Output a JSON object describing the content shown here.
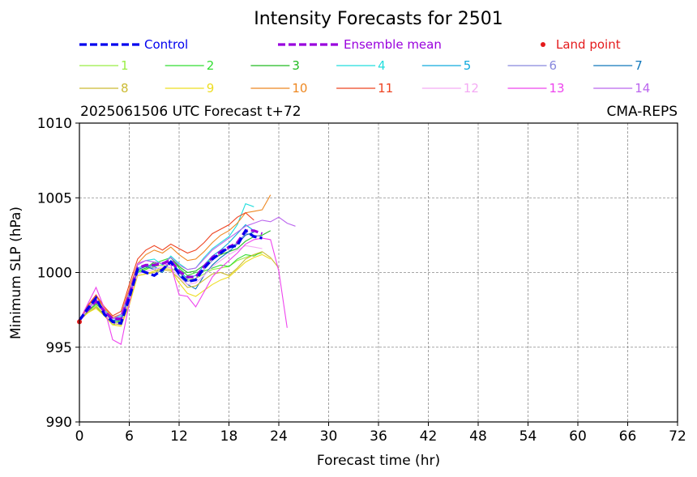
{
  "chart_data": {
    "type": "line",
    "title": "Intensity Forecasts for 2501",
    "subtitle_left": "2025061506 UTC Forecast t+72",
    "subtitle_right": "CMA-REPS",
    "xlabel": "Forecast time (hr)",
    "ylabel": "Minimum SLP (hPa)",
    "xlim": [
      0,
      72
    ],
    "ylim": [
      990,
      1010
    ],
    "xticks": [
      0,
      6,
      12,
      18,
      24,
      30,
      36,
      42,
      48,
      54,
      60,
      66,
      72
    ],
    "yticks": [
      990,
      995,
      1000,
      1005,
      1010
    ],
    "grid": true,
    "legend_position": "top",
    "land_point": {
      "label": "Land point",
      "color": "#e41a1c",
      "x": 0,
      "y": 996.7
    },
    "control": {
      "name": "Control",
      "color": "#0000ee",
      "x": [
        0,
        1,
        2,
        3,
        4,
        5,
        6,
        7,
        8,
        9,
        10,
        11,
        12,
        13,
        14,
        15,
        16,
        17,
        18,
        19,
        20,
        21,
        22
      ],
      "y": [
        996.8,
        997.6,
        998.3,
        997.2,
        996.7,
        996.6,
        998.3,
        1000.2,
        1000.0,
        999.8,
        1000.2,
        1000.7,
        999.9,
        999.4,
        999.5,
        1000.3,
        1000.9,
        1001.3,
        1001.7,
        1001.8,
        1002.8,
        1002.4,
        1002.3
      ]
    },
    "ensemble_mean": {
      "name": "Ensemble mean",
      "color": "#9900dd",
      "x": [
        0,
        1,
        2,
        3,
        4,
        5,
        6,
        7,
        8,
        9,
        10,
        11,
        12,
        13,
        14,
        15,
        16,
        17,
        18,
        19,
        20,
        21,
        22
      ],
      "y": [
        996.8,
        997.5,
        998.1,
        997.4,
        996.9,
        996.9,
        998.5,
        1000.3,
        1000.5,
        1000.5,
        1000.6,
        1000.8,
        1000.1,
        999.7,
        999.7,
        1000.4,
        1001.0,
        1001.4,
        1001.7,
        1002.0,
        1002.8,
        1002.8,
        1002.6
      ]
    },
    "series": [
      {
        "name": "1",
        "color": "#99ee44",
        "x": [
          0,
          1,
          2,
          3,
          4,
          5,
          6,
          7,
          8,
          9,
          10,
          11,
          12,
          13,
          14,
          15,
          16,
          17,
          18,
          19,
          20,
          21,
          22
        ],
        "y": [
          996.8,
          997.4,
          997.8,
          997.2,
          996.6,
          996.8,
          998.4,
          1000.0,
          1000.2,
          1000.4,
          1000.5,
          1000.3,
          1000.0,
          999.5,
          999.6,
          999.9,
          1000.2,
          1000.3,
          1000.4,
          1000.8,
          1001.0,
          1001.2,
          1001.3
        ]
      },
      {
        "name": "2",
        "color": "#33dd33",
        "x": [
          0,
          1,
          2,
          3,
          4,
          5,
          6,
          7,
          8,
          9,
          10,
          11,
          12,
          13,
          14,
          15,
          16,
          17,
          18,
          19,
          20,
          21,
          22
        ],
        "y": [
          996.8,
          997.3,
          997.7,
          997.1,
          996.5,
          996.7,
          998.3,
          1000.0,
          1000.2,
          1000.6,
          1000.8,
          1001.0,
          1000.3,
          999.8,
          1000.0,
          1000.1,
          1000.3,
          1000.5,
          1000.4,
          1000.9,
          1001.2,
          1001.1,
          1001.4
        ]
      },
      {
        "name": "3",
        "color": "#22bb22",
        "x": [
          0,
          1,
          2,
          3,
          4,
          5,
          6,
          7,
          8,
          9,
          10,
          11,
          12,
          13,
          14,
          15,
          16,
          17,
          18,
          19,
          20,
          21,
          22,
          23
        ],
        "y": [
          996.8,
          997.4,
          997.9,
          997.4,
          996.7,
          996.7,
          998.4,
          1000.1,
          1000.3,
          1000.7,
          1000.6,
          1001.0,
          1000.4,
          1000.0,
          1000.1,
          1000.5,
          1000.9,
          1001.2,
          1001.4,
          1001.6,
          1002.1,
          1002.4,
          1002.5,
          1002.8
        ]
      },
      {
        "name": "4",
        "color": "#22dddd",
        "x": [
          0,
          1,
          2,
          3,
          4,
          5,
          6,
          7,
          8,
          9,
          10,
          11,
          12,
          13,
          14,
          15,
          16,
          17,
          18,
          19,
          20,
          21
        ],
        "y": [
          996.8,
          997.6,
          998.2,
          997.5,
          996.9,
          997.1,
          998.6,
          1000.6,
          1000.8,
          1000.9,
          1000.5,
          1001.1,
          1000.6,
          1000.2,
          1000.3,
          1001.0,
          1001.6,
          1002.0,
          1002.4,
          1003.2,
          1004.6,
          1004.4
        ]
      },
      {
        "name": "5",
        "color": "#11aadd",
        "x": [
          0,
          1,
          2,
          3,
          4,
          5,
          6,
          7,
          8,
          9,
          10,
          11,
          12,
          13,
          14,
          15,
          16,
          17,
          18,
          19,
          20,
          21
        ],
        "y": [
          996.8,
          997.6,
          998.2,
          997.3,
          996.8,
          996.9,
          998.4,
          1000.3,
          1000.5,
          1000.4,
          1000.1,
          1000.8,
          1000.1,
          999.6,
          999.8,
          1000.5,
          1001.1,
          1001.5,
          1002.0,
          1002.6,
          1003.2,
          1002.8
        ]
      },
      {
        "name": "6",
        "color": "#8888dd",
        "x": [
          0,
          1,
          2,
          3,
          4,
          5,
          6,
          7,
          8,
          9,
          10,
          11,
          12,
          13,
          14,
          15,
          16,
          17,
          18,
          19,
          20,
          21,
          22
        ],
        "y": [
          996.8,
          997.5,
          998.0,
          997.4,
          996.9,
          997.0,
          998.5,
          1000.2,
          1000.4,
          1000.3,
          1000.2,
          1000.8,
          1000.0,
          999.4,
          999.6,
          1000.2,
          1000.8,
          1001.3,
          1001.6,
          1002.0,
          1002.6,
          1002.5,
          1002.4
        ]
      },
      {
        "name": "7",
        "color": "#1177bb",
        "x": [
          0,
          1,
          2,
          3,
          4,
          5,
          6,
          7,
          8,
          9,
          10,
          11,
          12,
          13,
          14,
          15,
          16,
          17,
          18,
          19,
          20,
          21
        ],
        "y": [
          996.8,
          997.6,
          998.1,
          997.3,
          996.8,
          996.8,
          998.3,
          1000.2,
          1000.4,
          1000.2,
          1000.0,
          1000.8,
          999.8,
          999.2,
          998.9,
          999.8,
          1000.5,
          1001.0,
          1001.4,
          1001.9,
          1002.5,
          1002.7
        ]
      },
      {
        "name": "8",
        "color": "#ccbb33",
        "x": [
          0,
          1,
          2,
          3,
          4,
          5,
          6,
          7,
          8,
          9,
          10,
          11,
          12,
          13,
          14,
          15,
          16,
          17,
          18,
          19,
          20,
          21,
          22,
          23,
          24
        ],
        "y": [
          996.8,
          997.3,
          997.7,
          997.2,
          996.6,
          996.5,
          998.0,
          999.8,
          999.9,
          1000.0,
          1000.2,
          1000.1,
          999.6,
          999.0,
          999.1,
          999.5,
          999.9,
          1000.0,
          999.8,
          1000.3,
          1000.9,
          1001.2,
          1001.4,
          1001.0,
          1000.3
        ]
      },
      {
        "name": "9",
        "color": "#eedd22",
        "x": [
          0,
          1,
          2,
          3,
          4,
          5,
          6,
          7,
          8,
          9,
          10,
          11,
          12,
          13,
          14,
          15,
          16,
          17,
          18,
          19,
          20,
          21,
          22,
          23
        ],
        "y": [
          996.8,
          997.3,
          997.6,
          997.1,
          996.5,
          996.4,
          997.8,
          999.8,
          999.9,
          1000.1,
          1000.3,
          1000.2,
          999.3,
          998.6,
          998.4,
          998.8,
          999.2,
          999.5,
          999.7,
          1000.2,
          1000.7,
          1001.0,
          1001.2,
          1000.9
        ]
      },
      {
        "name": "10",
        "color": "#ee8822",
        "x": [
          0,
          1,
          2,
          3,
          4,
          5,
          6,
          7,
          8,
          9,
          10,
          11,
          12,
          13,
          14,
          15,
          16,
          17,
          18,
          19,
          20,
          21,
          22,
          23
        ],
        "y": [
          996.8,
          997.7,
          998.4,
          997.6,
          997.0,
          997.2,
          998.9,
          1000.6,
          1001.2,
          1001.5,
          1001.3,
          1001.7,
          1001.2,
          1000.8,
          1000.9,
          1001.4,
          1002.0,
          1002.5,
          1002.8,
          1003.3,
          1004.0,
          1004.1,
          1004.2,
          1005.2
        ]
      },
      {
        "name": "11",
        "color": "#ee4422",
        "x": [
          0,
          1,
          2,
          3,
          4,
          5,
          6,
          7,
          8,
          9,
          10,
          11,
          12,
          13,
          14,
          15,
          16,
          17,
          18,
          19,
          20,
          21
        ],
        "y": [
          996.8,
          997.8,
          998.5,
          997.7,
          997.1,
          997.4,
          999.2,
          1000.9,
          1001.5,
          1001.8,
          1001.5,
          1001.9,
          1001.6,
          1001.3,
          1001.5,
          1002.0,
          1002.6,
          1002.9,
          1003.2,
          1003.7,
          1004.0,
          1003.5
        ]
      },
      {
        "name": "12",
        "color": "#f4aaf4",
        "x": [
          0,
          1,
          2,
          3,
          4,
          5,
          6,
          7,
          8,
          9,
          10,
          11,
          12,
          13,
          14,
          15,
          16,
          17,
          18,
          19,
          20,
          21,
          22
        ],
        "y": [
          996.8,
          997.5,
          998.1,
          997.2,
          996.6,
          996.6,
          998.2,
          999.9,
          1000.1,
          1000.2,
          1000.4,
          1000.3,
          999.7,
          999.2,
          999.3,
          999.8,
          1000.4,
          1000.8,
          1001.2,
          1001.5,
          1001.8,
          1001.7,
          1001.6
        ]
      },
      {
        "name": "13",
        "color": "#ee44ee",
        "x": [
          0,
          1,
          2,
          3,
          4,
          5,
          6,
          7,
          8,
          9,
          10,
          11,
          12,
          13,
          14,
          15,
          16,
          17,
          18,
          19,
          20,
          21,
          22,
          23,
          24,
          25
        ],
        "y": [
          996.8,
          997.9,
          999.0,
          997.6,
          995.5,
          995.2,
          997.9,
          1000.6,
          1000.8,
          1000.7,
          1000.6,
          1000.5,
          998.5,
          998.4,
          997.7,
          998.7,
          999.7,
          1000.3,
          1000.8,
          1001.3,
          1001.9,
          1002.2,
          1002.3,
          1002.2,
          1000.1,
          996.3
        ]
      },
      {
        "name": "14",
        "color": "#bb66ee",
        "x": [
          0,
          1,
          2,
          3,
          4,
          5,
          6,
          7,
          8,
          9,
          10,
          11,
          12,
          13,
          14,
          15,
          16,
          17,
          18,
          19,
          20,
          21,
          22,
          23,
          24,
          25,
          26
        ],
        "y": [
          996.8,
          997.6,
          998.2,
          997.4,
          996.9,
          997.2,
          998.7,
          1000.5,
          1000.8,
          1000.7,
          1000.6,
          1001.0,
          1000.5,
          1000.2,
          1000.3,
          1000.9,
          1001.5,
          1001.9,
          1002.3,
          1002.7,
          1003.1,
          1003.3,
          1003.5,
          1003.4,
          1003.7,
          1003.3,
          1003.1
        ]
      }
    ]
  }
}
